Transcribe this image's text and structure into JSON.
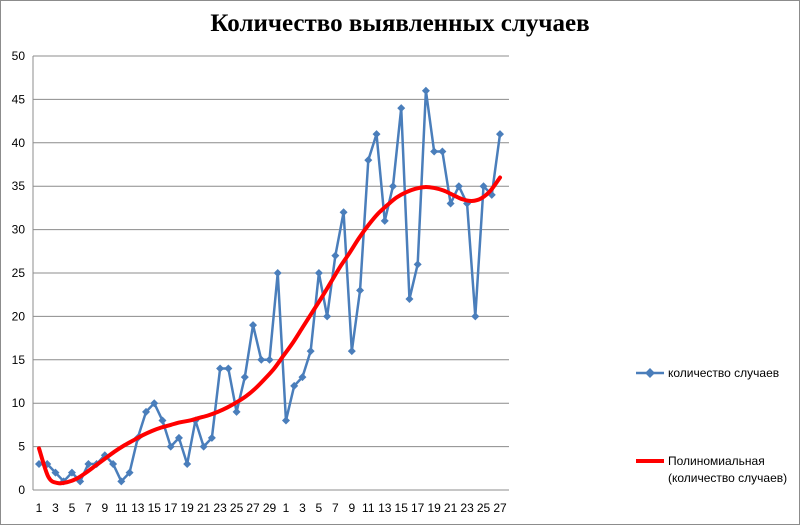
{
  "chart_data": {
    "type": "line",
    "title": "Количество выявленных случаев",
    "xlabel": "",
    "ylabel": "",
    "ylim": [
      0,
      50
    ],
    "y_ticks": [
      0,
      5,
      10,
      15,
      20,
      25,
      30,
      35,
      40,
      45,
      50
    ],
    "grid": "horizontal",
    "legend_position": "right",
    "x_tick_labels": [
      "1",
      "3",
      "5",
      "7",
      "9",
      "11",
      "13",
      "15",
      "17",
      "19",
      "21",
      "23",
      "25",
      "27",
      "29",
      "1",
      "3",
      "5",
      "7",
      "9",
      "11",
      "13",
      "15",
      "17",
      "19",
      "21",
      "23",
      "25",
      "27"
    ],
    "series": [
      {
        "name": "количество случаев",
        "color": "#4a7ebb",
        "marker": "diamond",
        "values": [
          3,
          3,
          2,
          1,
          2,
          1,
          3,
          3,
          4,
          3,
          1,
          2,
          6,
          9,
          10,
          8,
          5,
          6,
          3,
          8,
          5,
          6,
          14,
          14,
          9,
          13,
          19,
          15,
          15,
          25,
          8,
          12,
          13,
          16,
          25,
          20,
          27,
          32,
          16,
          23,
          38,
          41,
          31,
          35,
          44,
          22,
          26,
          46,
          39,
          39,
          33,
          35,
          33,
          20,
          35,
          34,
          41
        ]
      },
      {
        "name": "Полиномиальная (количество случаев)",
        "legend_lines": [
          "Полиномиальная",
          "(количество случаев)"
        ],
        "color": "#ff0000",
        "type": "trendline",
        "values": [
          4.8,
          1.5,
          0.8,
          0.9,
          1.3,
          2.0,
          2.8,
          3.6,
          4.4,
          5.1,
          5.7,
          6.3,
          6.8,
          7.2,
          7.5,
          7.8,
          8.0,
          8.3,
          8.6,
          9.0,
          9.5,
          10.1,
          10.8,
          11.7,
          12.8,
          14.0,
          15.5,
          17.0,
          18.7,
          20.4,
          22.1,
          23.9,
          25.7,
          27.3,
          29.0,
          30.5,
          31.8,
          32.8,
          33.7,
          34.3,
          34.7,
          34.9,
          34.8,
          34.5,
          34.0,
          33.5,
          33.3,
          33.6,
          34.5,
          36.0
        ]
      }
    ]
  }
}
